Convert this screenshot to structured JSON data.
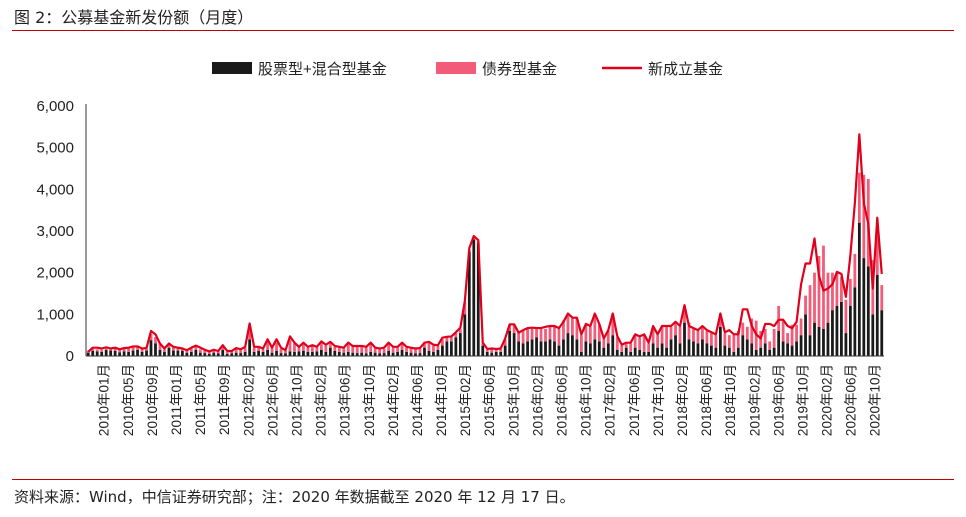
{
  "figure": {
    "title": "图 2：公募基金新发份额（月度）",
    "source": "资料来源：Wind，中信证券研究部；注：2020 年数据截至 2020 年 12 月 17 日。"
  },
  "colors": {
    "equity": "#1a1a1a",
    "bond": "#f25c78",
    "total_line": "#e0001b",
    "rule": "#c00000"
  },
  "chart_data": {
    "type": "bar",
    "title": "",
    "xlabel": "",
    "ylabel": "",
    "ylim": [
      0,
      6000
    ],
    "yticks": [
      0,
      1000,
      2000,
      3000,
      4000,
      5000,
      6000
    ],
    "ytick_labels": [
      "0",
      "1,000",
      "2,000",
      "3,000",
      "4,000",
      "5,000",
      "6,000"
    ],
    "legend_position": "top-center",
    "stacked": true,
    "x_tick_labels": [
      "2010年01月",
      "2010年05月",
      "2010年09月",
      "2011年01月",
      "2011年05月",
      "2011年09月",
      "2012年02月",
      "2012年06月",
      "2012年10月",
      "2013年02月",
      "2013年06月",
      "2013年10月",
      "2014年02月",
      "2014年06月",
      "2014年10月",
      "2015年02月",
      "2015年06月",
      "2015年10月",
      "2016年02月",
      "2016年06月",
      "2016年10月",
      "2017年02月",
      "2017年06月",
      "2017年10月",
      "2018年02月",
      "2018年06月",
      "2018年10月",
      "2019年02月",
      "2019年06月",
      "2019年10月",
      "2020年02月",
      "2020年06月",
      "2020年10月"
    ],
    "series": [
      {
        "name": "股票型+混合型基金",
        "kind": "bar",
        "values": [
          80,
          120,
          110,
          100,
          150,
          130,
          120,
          90,
          110,
          100,
          130,
          150,
          100,
          130,
          380,
          300,
          150,
          100,
          200,
          130,
          130,
          120,
          80,
          100,
          150,
          80,
          70,
          50,
          80,
          60,
          150,
          50,
          60,
          80,
          70,
          100,
          400,
          100,
          120,
          100,
          150,
          80,
          120,
          70,
          60,
          110,
          100,
          110,
          120,
          100,
          100,
          110,
          150,
          100,
          200,
          120,
          100,
          80,
          100,
          80,
          70,
          80,
          60,
          100,
          80,
          60,
          70,
          120,
          80,
          100,
          150,
          100,
          80,
          60,
          70,
          200,
          120,
          100,
          150,
          250,
          350,
          350,
          450,
          550,
          1000,
          2500,
          2800,
          2700,
          250,
          100,
          80,
          100,
          100,
          250,
          600,
          550,
          350,
          300,
          350,
          400,
          450,
          350,
          350,
          400,
          350,
          250,
          400,
          550,
          500,
          400,
          100,
          350,
          300,
          400,
          350,
          200,
          300,
          500,
          150,
          100,
          200,
          100,
          200,
          150,
          100,
          100,
          300,
          200,
          300,
          200,
          400,
          500,
          300,
          800,
          400,
          350,
          300,
          400,
          300,
          250,
          200,
          700,
          250,
          200,
          100,
          200,
          500,
          400,
          300,
          150,
          200,
          300,
          150,
          200,
          600,
          350,
          300,
          250,
          350,
          500,
          1000,
          500,
          800,
          700,
          650,
          800,
          1100,
          1200,
          1300,
          550,
          1200,
          1650,
          3200,
          2350,
          2150,
          1000,
          1950,
          1100
        ]
      },
      {
        "name": "债券型基金",
        "kind": "bar",
        "values": [
          50,
          50,
          50,
          50,
          50,
          60,
          80,
          60,
          60,
          80,
          80,
          70,
          60,
          40,
          150,
          150,
          150,
          60,
          100,
          70,
          70,
          60,
          50,
          80,
          100,
          80,
          60,
          40,
          60,
          50,
          100,
          50,
          50,
          100,
          70,
          100,
          250,
          100,
          80,
          60,
          200,
          100,
          200,
          100,
          60,
          280,
          200,
          100,
          200,
          100,
          150,
          100,
          180,
          150,
          120,
          100,
          100,
          100,
          200,
          150,
          150,
          150,
          150,
          200,
          100,
          100,
          100,
          180,
          120,
          100,
          150,
          100,
          100,
          100,
          100,
          100,
          200,
          150,
          100,
          150,
          100,
          100,
          100,
          100,
          300,
          50,
          50,
          50,
          50,
          50,
          80,
          50,
          60,
          150,
          150,
          200,
          200,
          300,
          300,
          250,
          200,
          300,
          300,
          300,
          350,
          400,
          450,
          450,
          400,
          500,
          400,
          400,
          400,
          600,
          400,
          200,
          300,
          500,
          300,
          150,
          100,
          200,
          300,
          300,
          400,
          200,
          400,
          300,
          400,
          500,
          300,
          300,
          400,
          400,
          400,
          300,
          300,
          300,
          300,
          300,
          300,
          300,
          300,
          300,
          400,
          400,
          300,
          300,
          600,
          700,
          400,
          350,
          200,
          450,
          600,
          500,
          250,
          500,
          400,
          400,
          450,
          1200,
          1200,
          1700,
          2000,
          1200,
          900,
          800,
          600,
          800,
          650,
          800,
          1200,
          2000,
          2100,
          1300,
          1000,
          600,
          1350,
          850
        ]
      },
      {
        "name": "新成立基金",
        "kind": "line",
        "values": [
          100,
          200,
          200,
          180,
          210,
          180,
          200,
          160,
          190,
          200,
          230,
          230,
          180,
          190,
          600,
          520,
          300,
          180,
          300,
          220,
          200,
          180,
          140,
          200,
          250,
          200,
          150,
          110,
          150,
          120,
          260,
          120,
          120,
          190,
          160,
          220,
          780,
          220,
          220,
          180,
          400,
          200,
          400,
          200,
          140,
          470,
          320,
          220,
          320,
          220,
          260,
          220,
          350,
          270,
          340,
          240,
          220,
          200,
          320,
          240,
          240,
          240,
          220,
          320,
          200,
          180,
          200,
          320,
          220,
          220,
          320,
          220,
          200,
          180,
          190,
          320,
          340,
          270,
          260,
          440,
          460,
          470,
          570,
          680,
          1320,
          2590,
          2880,
          2780,
          320,
          170,
          180,
          170,
          180,
          420,
          760,
          760,
          560,
          620,
          670,
          680,
          670,
          670,
          700,
          720,
          720,
          670,
          820,
          1020,
          920,
          920,
          520,
          770,
          720,
          1020,
          770,
          420,
          620,
          1020,
          480,
          270,
          320,
          320,
          520,
          470,
          520,
          320,
          720,
          520,
          720,
          720,
          720,
          820,
          720,
          1220,
          720,
          670,
          620,
          720,
          620,
          570,
          520,
          1020,
          570,
          620,
          520,
          520,
          1120,
          1120,
          720,
          520,
          420,
          770,
          770,
          720,
          870,
          870,
          720,
          670,
          820,
          1720,
          2220,
          2220,
          2820,
          1920,
          1570,
          1620,
          1720,
          2020,
          1970,
          1420,
          2420,
          3670,
          5320,
          3670,
          3170,
          1620,
          3320,
          1970
        ]
      }
    ]
  }
}
